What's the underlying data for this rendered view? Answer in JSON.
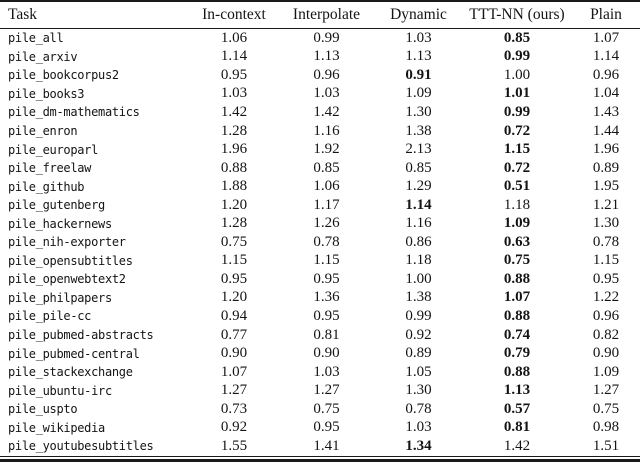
{
  "table": {
    "columns": [
      "Task",
      "In-context",
      "Interpolate",
      "Dynamic",
      "TTT-NN (ours)",
      "Plain"
    ],
    "rows": [
      {
        "task": "pile_all",
        "values": [
          "1.06",
          "0.99",
          "1.03",
          "0.85",
          "1.07"
        ],
        "bold": 3
      },
      {
        "task": "pile_arxiv",
        "values": [
          "1.14",
          "1.13",
          "1.13",
          "0.99",
          "1.14"
        ],
        "bold": 3
      },
      {
        "task": "pile_bookcorpus2",
        "values": [
          "0.95",
          "0.96",
          "0.91",
          "1.00",
          "0.96"
        ],
        "bold": 2
      },
      {
        "task": "pile_books3",
        "values": [
          "1.03",
          "1.03",
          "1.09",
          "1.01",
          "1.04"
        ],
        "bold": 3
      },
      {
        "task": "pile_dm-mathematics",
        "values": [
          "1.42",
          "1.42",
          "1.30",
          "0.99",
          "1.43"
        ],
        "bold": 3
      },
      {
        "task": "pile_enron",
        "values": [
          "1.28",
          "1.16",
          "1.38",
          "0.72",
          "1.44"
        ],
        "bold": 3
      },
      {
        "task": "pile_europarl",
        "values": [
          "1.96",
          "1.92",
          "2.13",
          "1.15",
          "1.96"
        ],
        "bold": 3
      },
      {
        "task": "pile_freelaw",
        "values": [
          "0.88",
          "0.85",
          "0.85",
          "0.72",
          "0.89"
        ],
        "bold": 3
      },
      {
        "task": "pile_github",
        "values": [
          "1.88",
          "1.06",
          "1.29",
          "0.51",
          "1.95"
        ],
        "bold": 3
      },
      {
        "task": "pile_gutenberg",
        "values": [
          "1.20",
          "1.17",
          "1.14",
          "1.18",
          "1.21"
        ],
        "bold": 2
      },
      {
        "task": "pile_hackernews",
        "values": [
          "1.28",
          "1.26",
          "1.16",
          "1.09",
          "1.30"
        ],
        "bold": 3
      },
      {
        "task": "pile_nih-exporter",
        "values": [
          "0.75",
          "0.78",
          "0.86",
          "0.63",
          "0.78"
        ],
        "bold": 3
      },
      {
        "task": "pile_opensubtitles",
        "values": [
          "1.15",
          "1.15",
          "1.18",
          "0.75",
          "1.15"
        ],
        "bold": 3
      },
      {
        "task": "pile_openwebtext2",
        "values": [
          "0.95",
          "0.95",
          "1.00",
          "0.88",
          "0.95"
        ],
        "bold": 3
      },
      {
        "task": "pile_philpapers",
        "values": [
          "1.20",
          "1.36",
          "1.38",
          "1.07",
          "1.22"
        ],
        "bold": 3
      },
      {
        "task": "pile_pile-cc",
        "values": [
          "0.94",
          "0.95",
          "0.99",
          "0.88",
          "0.96"
        ],
        "bold": 3
      },
      {
        "task": "pile_pubmed-abstracts",
        "values": [
          "0.77",
          "0.81",
          "0.92",
          "0.74",
          "0.82"
        ],
        "bold": 3
      },
      {
        "task": "pile_pubmed-central",
        "values": [
          "0.90",
          "0.90",
          "0.89",
          "0.79",
          "0.90"
        ],
        "bold": 3
      },
      {
        "task": "pile_stackexchange",
        "values": [
          "1.07",
          "1.03",
          "1.05",
          "0.88",
          "1.09"
        ],
        "bold": 3
      },
      {
        "task": "pile_ubuntu-irc",
        "values": [
          "1.27",
          "1.27",
          "1.30",
          "1.13",
          "1.27"
        ],
        "bold": 3
      },
      {
        "task": "pile_uspto",
        "values": [
          "0.73",
          "0.75",
          "0.78",
          "0.57",
          "0.75"
        ],
        "bold": 3
      },
      {
        "task": "pile_wikipedia",
        "values": [
          "0.92",
          "0.95",
          "1.03",
          "0.81",
          "0.98"
        ],
        "bold": 3
      },
      {
        "task": "pile_youtubesubtitles",
        "values": [
          "1.55",
          "1.41",
          "1.34",
          "1.42",
          "1.51"
        ],
        "bold": 2
      }
    ],
    "text_color": "#141414",
    "rule_color": "#1a1a1a"
  }
}
